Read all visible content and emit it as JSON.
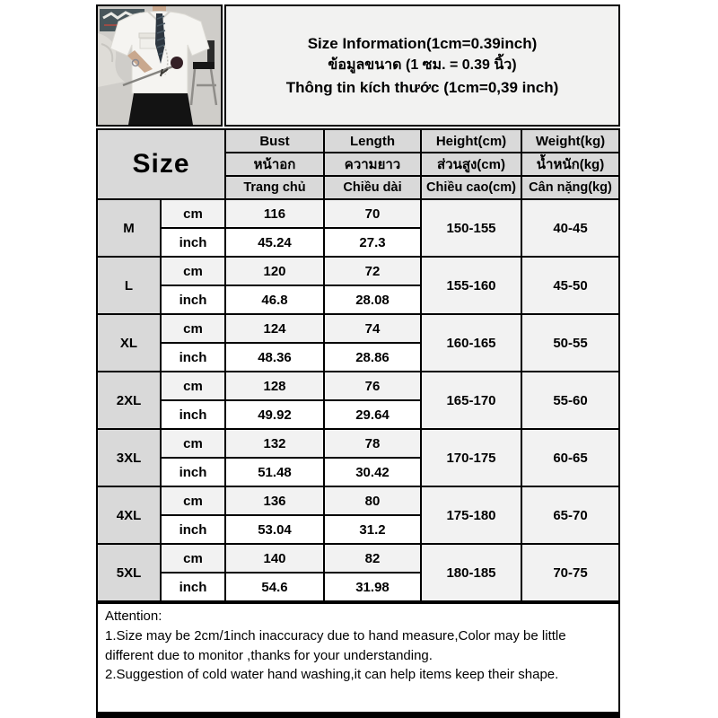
{
  "photo": {
    "description": "model wearing oversized white short-sleeve shirt with dark striped tie holding a rose"
  },
  "info_header": {
    "line1": "Size Information(1cm=0.39inch)",
    "line2": "ข้อมูลขนาด (1 ซม. = 0.39 นิ้ว)",
    "line3": "Thông tin kích thước (1cm=0,39 inch)"
  },
  "table": {
    "size_title": "Size",
    "columns": [
      {
        "en": "Bust",
        "th": "หน้าอก",
        "vi": "Trang chủ"
      },
      {
        "en": "Length",
        "th": "ความยาว",
        "vi": "Chiều dài"
      },
      {
        "en": "Height(cm)",
        "th": "ส่วนสูง(cm)",
        "vi": "Chiều cao(cm)"
      },
      {
        "en": "Weight(kg)",
        "th": "น้ำหนัก(kg)",
        "vi": "Cân nặng(kg)"
      }
    ],
    "unit_labels": {
      "cm": "cm",
      "inch": "inch"
    },
    "sizes": [
      {
        "label": "M",
        "bust_cm": "116",
        "length_cm": "70",
        "bust_inch": "45.24",
        "length_inch": "27.3",
        "height": "150-155",
        "weight": "40-45"
      },
      {
        "label": "L",
        "bust_cm": "120",
        "length_cm": "72",
        "bust_inch": "46.8",
        "length_inch": "28.08",
        "height": "155-160",
        "weight": "45-50"
      },
      {
        "label": "XL",
        "bust_cm": "124",
        "length_cm": "74",
        "bust_inch": "48.36",
        "length_inch": "28.86",
        "height": "160-165",
        "weight": "50-55"
      },
      {
        "label": "2XL",
        "bust_cm": "128",
        "length_cm": "76",
        "bust_inch": "49.92",
        "length_inch": "29.64",
        "height": "165-170",
        "weight": "55-60"
      },
      {
        "label": "3XL",
        "bust_cm": "132",
        "length_cm": "78",
        "bust_inch": "51.48",
        "length_inch": "30.42",
        "height": "170-175",
        "weight": "60-65"
      },
      {
        "label": "4XL",
        "bust_cm": "136",
        "length_cm": "80",
        "bust_inch": "53.04",
        "length_inch": "31.2",
        "height": "175-180",
        "weight": "65-70"
      },
      {
        "label": "5XL",
        "bust_cm": "140",
        "length_cm": "82",
        "bust_inch": "54.6",
        "length_inch": "31.98",
        "height": "180-185",
        "weight": "70-75"
      }
    ]
  },
  "attention": {
    "title": "Attention:",
    "line1": "1.Size may be 2cm/1inch inaccuracy due to hand measure,Color may be little different due to monitor ,thanks for your understanding.",
    "line2": "2.Suggestion of cold water hand washing,it can help items keep their shape."
  },
  "colors": {
    "header_cell_bg": "#d9d9d9",
    "cm_row_bg": "#f2f2f2",
    "inch_row_bg": "#ffffff",
    "info_box_bg": "#f2f2f1",
    "border": "#000000"
  }
}
